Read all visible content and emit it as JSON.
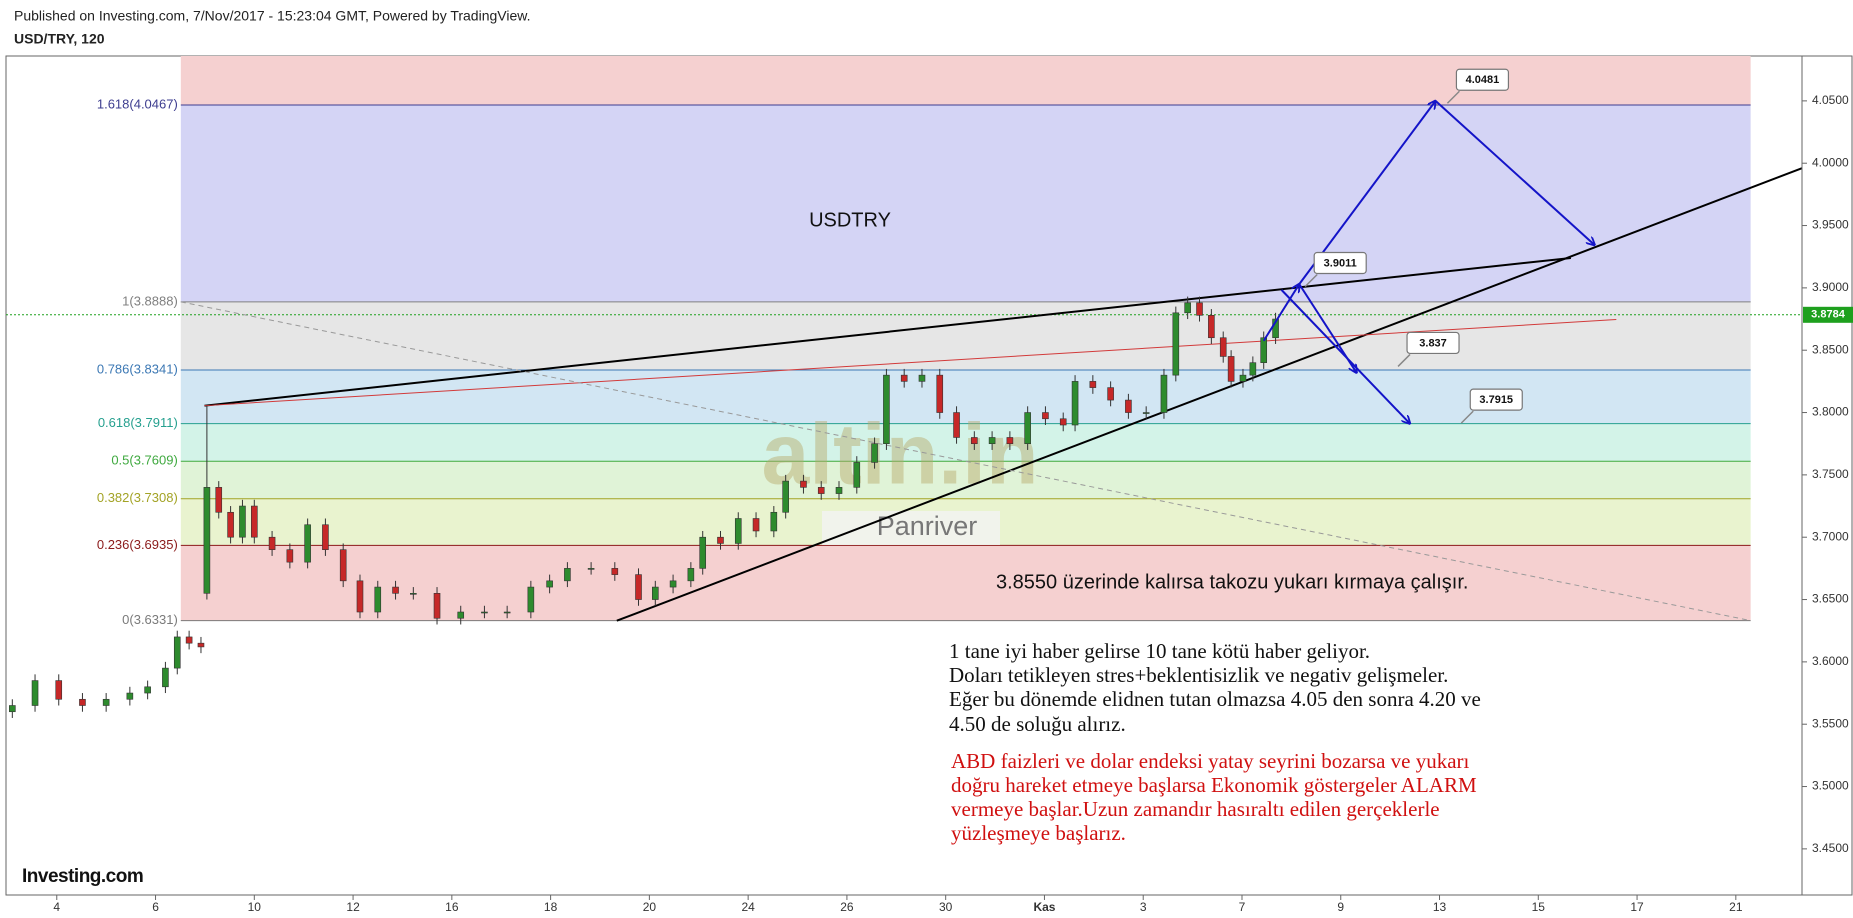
{
  "header": {
    "published": "Published on Investing.com, 7/Nov/2017 - 15:23:04 GMT, Powered by TradingView.",
    "symbol": "USD/TRY, 120"
  },
  "logo": "Investing.com",
  "chart_data": {
    "type": "candlestick",
    "xlim": [
      0.486,
      18.67
    ],
    "ylim": [
      3.413,
      4.086
    ],
    "grid": false,
    "xticks": [
      {
        "value": 1,
        "label": "4"
      },
      {
        "value": 2,
        "label": "6"
      },
      {
        "value": 3,
        "label": "10"
      },
      {
        "value": 4,
        "label": "12"
      },
      {
        "value": 5,
        "label": "16"
      },
      {
        "value": 6,
        "label": "18"
      },
      {
        "value": 7,
        "label": "20"
      },
      {
        "value": 8,
        "label": "24"
      },
      {
        "value": 9,
        "label": "26"
      },
      {
        "value": 10,
        "label": "30"
      },
      {
        "value": 11,
        "label": "Kas"
      },
      {
        "value": 12,
        "label": "3"
      },
      {
        "value": 13,
        "label": "7"
      },
      {
        "value": 14,
        "label": "9"
      },
      {
        "value": 15,
        "label": "13"
      },
      {
        "value": 16,
        "label": "15"
      },
      {
        "value": 17,
        "label": "17"
      },
      {
        "value": 18,
        "label": "21"
      }
    ],
    "yticks": [
      {
        "value": 3.45,
        "label": "3.4500"
      },
      {
        "value": 3.5,
        "label": "3.5000"
      },
      {
        "value": 3.55,
        "label": "3.5500"
      },
      {
        "value": 3.6,
        "label": "3.6000"
      },
      {
        "value": 3.65,
        "label": "3.6500"
      },
      {
        "value": 3.7,
        "label": "3.7000"
      },
      {
        "value": 3.75,
        "label": "3.7500"
      },
      {
        "value": 3.8,
        "label": "3.8000"
      },
      {
        "value": 3.85,
        "label": "3.8500"
      },
      {
        "value": 3.9,
        "label": "3.9000"
      },
      {
        "value": 3.95,
        "label": "3.9500"
      },
      {
        "value": 4.0,
        "label": "4.0000"
      },
      {
        "value": 4.05,
        "label": "4.0500"
      }
    ],
    "candles": {
      "up_color": "#2e8b2e",
      "down_color": "#c62828",
      "x": [
        0.55,
        0.78,
        1.02,
        1.26,
        1.5,
        1.74,
        1.92,
        2.1,
        2.22,
        2.34,
        2.46,
        2.52,
        2.64,
        2.76,
        2.88,
        3.0,
        3.18,
        3.36,
        3.54,
        3.72,
        3.9,
        4.07,
        4.25,
        4.43,
        4.61,
        4.85,
        5.09,
        5.33,
        5.56,
        5.8,
        5.99,
        6.17,
        6.41,
        6.65,
        6.89,
        7.06,
        7.24,
        7.42,
        7.54,
        7.72,
        7.9,
        8.08,
        8.26,
        8.38,
        8.56,
        8.74,
        8.92,
        9.1,
        9.28,
        9.4,
        9.58,
        9.76,
        9.94,
        10.11,
        10.29,
        10.47,
        10.65,
        10.83,
        11.01,
        11.19,
        11.31,
        11.49,
        11.67,
        11.85,
        12.03,
        12.21,
        12.33,
        12.45,
        12.57,
        12.69,
        12.81,
        12.89,
        13.01,
        13.11,
        13.22,
        13.34
      ],
      "open": [
        3.56,
        3.565,
        3.585,
        3.57,
        3.565,
        3.57,
        3.575,
        3.58,
        3.595,
        3.62,
        3.615,
        3.655,
        3.74,
        3.72,
        3.7,
        3.725,
        3.7,
        3.69,
        3.68,
        3.71,
        3.69,
        3.665,
        3.64,
        3.66,
        3.655,
        3.655,
        3.635,
        3.64,
        3.64,
        3.64,
        3.66,
        3.665,
        3.675,
        3.675,
        3.67,
        3.65,
        3.66,
        3.665,
        3.675,
        3.7,
        3.695,
        3.715,
        3.705,
        3.72,
        3.745,
        3.74,
        3.735,
        3.74,
        3.76,
        3.775,
        3.83,
        3.825,
        3.83,
        3.8,
        3.78,
        3.775,
        3.78,
        3.775,
        3.8,
        3.795,
        3.79,
        3.825,
        3.82,
        3.81,
        3.8,
        3.8,
        3.83,
        3.88,
        3.888,
        3.878,
        3.86,
        3.845,
        3.825,
        3.83,
        3.84,
        3.86
      ],
      "high": [
        3.57,
        3.59,
        3.59,
        3.575,
        3.575,
        3.58,
        3.585,
        3.6,
        3.625,
        3.625,
        3.62,
        3.8055,
        3.745,
        3.725,
        3.73,
        3.73,
        3.705,
        3.695,
        3.715,
        3.715,
        3.695,
        3.67,
        3.665,
        3.665,
        3.66,
        3.66,
        3.645,
        3.645,
        3.645,
        3.665,
        3.67,
        3.68,
        3.68,
        3.68,
        3.675,
        3.665,
        3.67,
        3.68,
        3.705,
        3.705,
        3.72,
        3.72,
        3.725,
        3.75,
        3.75,
        3.745,
        3.745,
        3.765,
        3.78,
        3.835,
        3.835,
        3.835,
        3.835,
        3.805,
        3.785,
        3.785,
        3.785,
        3.805,
        3.805,
        3.8,
        3.83,
        3.83,
        3.825,
        3.815,
        3.805,
        3.835,
        3.885,
        3.893,
        3.893,
        3.883,
        3.865,
        3.85,
        3.835,
        3.845,
        3.865,
        3.88
      ],
      "low": [
        3.555,
        3.56,
        3.565,
        3.56,
        3.56,
        3.565,
        3.57,
        3.575,
        3.59,
        3.61,
        3.607,
        3.65,
        3.715,
        3.695,
        3.695,
        3.695,
        3.685,
        3.675,
        3.675,
        3.685,
        3.66,
        3.635,
        3.635,
        3.65,
        3.65,
        3.63,
        3.63,
        3.635,
        3.635,
        3.635,
        3.655,
        3.66,
        3.67,
        3.665,
        3.645,
        3.645,
        3.655,
        3.66,
        3.67,
        3.69,
        3.69,
        3.7,
        3.7,
        3.715,
        3.735,
        3.73,
        3.73,
        3.735,
        3.755,
        3.77,
        3.82,
        3.82,
        3.795,
        3.775,
        3.77,
        3.77,
        3.77,
        3.77,
        3.79,
        3.785,
        3.785,
        3.815,
        3.805,
        3.795,
        3.795,
        3.795,
        3.825,
        3.875,
        3.873,
        3.855,
        3.84,
        3.82,
        3.82,
        3.825,
        3.835,
        3.855
      ],
      "close": [
        3.565,
        3.585,
        3.57,
        3.565,
        3.57,
        3.575,
        3.58,
        3.595,
        3.62,
        3.615,
        3.612,
        3.74,
        3.72,
        3.7,
        3.725,
        3.7,
        3.69,
        3.68,
        3.71,
        3.69,
        3.665,
        3.64,
        3.66,
        3.655,
        3.655,
        3.635,
        3.64,
        3.64,
        3.64,
        3.66,
        3.665,
        3.675,
        3.675,
        3.67,
        3.65,
        3.66,
        3.665,
        3.675,
        3.7,
        3.695,
        3.715,
        3.705,
        3.72,
        3.745,
        3.74,
        3.735,
        3.74,
        3.76,
        3.775,
        3.83,
        3.825,
        3.83,
        3.8,
        3.78,
        3.775,
        3.78,
        3.775,
        3.8,
        3.795,
        3.79,
        3.825,
        3.82,
        3.81,
        3.8,
        3.8,
        3.83,
        3.88,
        3.888,
        3.878,
        3.86,
        3.845,
        3.825,
        3.83,
        3.84,
        3.86,
        3.875
      ]
    },
    "last_price": {
      "value": 3.8784,
      "color": "#1ea01e"
    },
    "fibonacci": {
      "x": [
        2.256,
        18.15
      ],
      "levels": [
        {
          "value": 4.0467,
          "label": "1.618(4.0467)",
          "color": "#3d3d8f"
        },
        {
          "value": 3.8888,
          "label": "1(3.8888)",
          "color": "#808080"
        },
        {
          "value": 3.8341,
          "label": "0.786(3.8341)",
          "color": "#3c78b4"
        },
        {
          "value": 3.7911,
          "label": "0.618(3.7911)",
          "color": "#26a08f"
        },
        {
          "value": 3.7609,
          "label": "0.5(3.7609)",
          "color": "#3fa93f"
        },
        {
          "value": 3.7308,
          "label": "0.382(3.7308)",
          "color": "#a3a325"
        },
        {
          "value": 3.6935,
          "label": "0.236(3.6935)",
          "color": "#8b1a1a"
        },
        {
          "value": 3.6331,
          "label": "0(3.6331)",
          "color": "#7a7a7a"
        }
      ],
      "band_colors": [
        "#f5d0d0",
        "#d4d4f5",
        "#e6e6e6",
        "#d2e6f3",
        "#d3f3e8",
        "#e0f3d7",
        "#e9f3cf",
        "#f5d0d0"
      ]
    },
    "lines": [
      {
        "x": [
          2.495,
          16.33
        ],
        "y": [
          3.8055,
          3.924
        ],
        "color": "#000000",
        "width": 2,
        "dashed": false
      },
      {
        "x": [
          6.67,
          18.67
        ],
        "y": [
          3.633,
          3.996
        ],
        "color": "#000000",
        "width": 2,
        "dashed": false
      },
      {
        "x": [
          2.495,
          16.79
        ],
        "y": [
          3.8055,
          3.8746
        ],
        "color": "#d23a3a",
        "width": 1,
        "dashed": false
      },
      {
        "x": [
          2.256,
          18.15
        ],
        "y": [
          3.8888,
          3.6331
        ],
        "color": "#999999",
        "width": 1,
        "dashed": true
      }
    ],
    "arrows": {
      "color": "#1414c8",
      "segments": [
        {
          "x": [
            13.22,
            13.58
          ],
          "y": [
            3.8576,
            3.903
          ]
        },
        {
          "x": [
            13.58,
            14.96
          ],
          "y": [
            3.903,
            4.05
          ]
        },
        {
          "x": [
            14.96,
            16.57
          ],
          "y": [
            4.05,
            3.9344
          ]
        },
        {
          "x": [
            13.58,
            14.16
          ],
          "y": [
            3.903,
            3.832
          ]
        },
        {
          "x": [
            13.4,
            14.7
          ],
          "y": [
            3.8984,
            3.7912
          ]
        }
      ]
    },
    "callouts": [
      {
        "x": 15.08,
        "value": 4.0481
      },
      {
        "x": 13.64,
        "value": 3.9011
      },
      {
        "x": 14.58,
        "value": 3.837
      },
      {
        "x": 15.22,
        "value": 3.7915
      }
    ],
    "annotations": {
      "symbol_label": "USDTRY",
      "watermark": "altin.in",
      "watermark_sub": "Panriver",
      "note": "3.8550 üzerinde kalırsa takozu yukarı kırmaya çalışır.",
      "paragraph_black": [
        "1 tane iyi haber gelirse 10 tane kötü haber geliyor.",
        "Doları tetikleyen stres+beklentisizlik ve negativ gelişmeler.",
        "Eğer bu dönemde elidnen tutan olmazsa 4.05 den sonra 4.20 ve",
        "4.50 de soluğu alırız."
      ],
      "paragraph_red": [
        "ABD faizleri ve dolar endeksi yatay seyrini bozarsa ve yukarı",
        "doğru hareket etmeye başlarsa Ekonomik göstergeler ALARM",
        "vermeye başlar.Uzun zamandır hasıraltı edilen gerçeklerle",
        "yüzleşmeye başlarız."
      ]
    }
  }
}
